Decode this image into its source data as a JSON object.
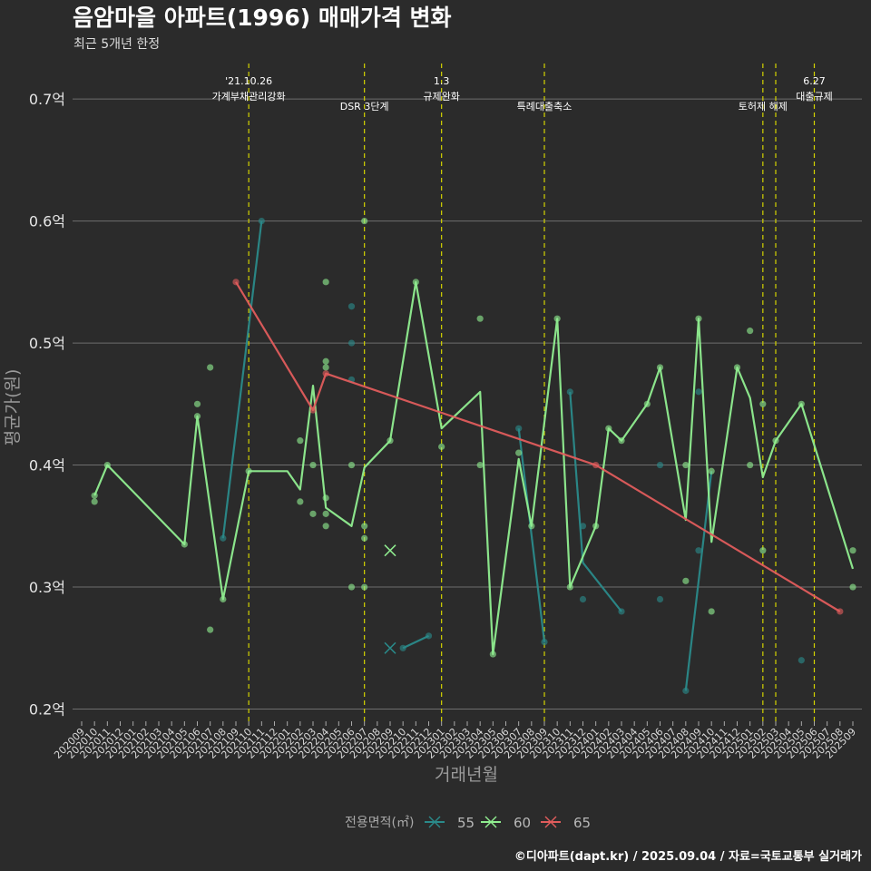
{
  "chart_data": {
    "type": "line",
    "title": "음암마을 아파트(1996) 매매가격 변화",
    "subtitle": "최근 5개년 한정",
    "xlabel": "거래년월",
    "ylabel": "평균가(원)",
    "y_unit": "억",
    "ylim": [
      0.19,
      0.735
    ],
    "yticks": [
      0.2,
      0.3,
      0.4,
      0.5,
      0.6,
      0.7
    ],
    "ytick_labels": [
      "0.2억",
      "0.3억",
      "0.4억",
      "0.5억",
      "0.6억",
      "0.7억"
    ],
    "grid": true,
    "legend": {
      "title": "전용면적(㎡)",
      "position": "bottom"
    },
    "categories": [
      "202009",
      "202010",
      "202011",
      "202012",
      "202101",
      "202102",
      "202103",
      "202104",
      "202105",
      "202106",
      "202107",
      "202108",
      "202109",
      "202110",
      "202111",
      "202112",
      "202201",
      "202202",
      "202203",
      "202204",
      "202205",
      "202206",
      "202207",
      "202208",
      "202209",
      "202210",
      "202211",
      "202212",
      "202301",
      "202302",
      "202303",
      "202304",
      "202305",
      "202306",
      "202307",
      "202308",
      "202309",
      "202310",
      "202311",
      "202312",
      "202401",
      "202402",
      "202403",
      "202404",
      "202405",
      "202406",
      "202407",
      "202408",
      "202409",
      "202410",
      "202411",
      "202412",
      "202501",
      "202502",
      "202503",
      "202504",
      "202505",
      "202506",
      "202507",
      "202508",
      "202509"
    ],
    "events": [
      {
        "x": "202110",
        "lines": [
          "'21.10.26",
          "가계부채관리강화"
        ]
      },
      {
        "x": "202207",
        "lines": [
          "DSR 3단계"
        ]
      },
      {
        "x": "202301",
        "lines": [
          "1.3",
          "규제완화"
        ]
      },
      {
        "x": "202309",
        "lines": [
          "특례대출축소"
        ]
      },
      {
        "x": "202502",
        "lines": [
          "토허제 해제"
        ]
      },
      {
        "x": "202503",
        "lines": []
      },
      {
        "x": "202506",
        "lines": [
          "6.27",
          "대출규제"
        ]
      }
    ],
    "series": [
      {
        "name": "55",
        "color": "#2a8a8a",
        "line": [
          [
            "202108",
            0.34
          ],
          [
            "202111",
            0.6
          ],
          null,
          [
            "202210",
            0.25
          ],
          [
            "202212",
            0.26
          ],
          null,
          [
            "202307",
            0.43
          ],
          [
            "202309",
            0.255
          ],
          null,
          [
            "202311",
            0.46
          ],
          [
            "202312",
            0.32
          ],
          [
            "202403",
            0.28
          ],
          null,
          [
            "202408",
            0.215
          ],
          [
            "202410",
            0.395
          ]
        ],
        "points": [
          [
            "202108",
            0.34
          ],
          [
            "202111",
            0.6
          ],
          [
            "202206",
            0.53
          ],
          [
            "202206",
            0.5
          ],
          [
            "202206",
            0.47
          ],
          [
            "202210",
            0.25
          ],
          [
            "202212",
            0.26
          ],
          [
            "202307",
            0.43
          ],
          [
            "202309",
            0.255
          ],
          [
            "202311",
            0.46
          ],
          [
            "202312",
            0.35
          ],
          [
            "202312",
            0.29
          ],
          [
            "202403",
            0.28
          ],
          [
            "202406",
            0.4
          ],
          [
            "202406",
            0.29
          ],
          [
            "202408",
            0.215
          ],
          [
            "202409",
            0.33
          ],
          [
            "202409",
            0.46
          ],
          [
            "202505",
            0.24
          ]
        ],
        "cross": [
          [
            "202209",
            0.25
          ]
        ]
      },
      {
        "name": "60",
        "color": "#90ee90",
        "line": [
          [
            "202010",
            0.375
          ],
          [
            "202011",
            0.4
          ],
          [
            "202105",
            0.335
          ],
          [
            "202106",
            0.44
          ],
          [
            "202108",
            0.29
          ],
          [
            "202110",
            0.395
          ],
          [
            "202201",
            0.395
          ],
          [
            "202202",
            0.38
          ],
          [
            "202203",
            0.465
          ],
          [
            "202204",
            0.365
          ],
          [
            "202206",
            0.35
          ],
          [
            "202207",
            0.398
          ],
          [
            "202209",
            0.42
          ],
          [
            "202211",
            0.55
          ],
          [
            "202301",
            0.43
          ],
          [
            "202304",
            0.46
          ],
          [
            "202305",
            0.245
          ],
          [
            "202307",
            0.405
          ],
          [
            "202308",
            0.35
          ],
          [
            "202310",
            0.52
          ],
          [
            "202311",
            0.3
          ],
          [
            "202401",
            0.35
          ],
          [
            "202402",
            0.43
          ],
          [
            "202403",
            0.42
          ],
          [
            "202405",
            0.45
          ],
          [
            "202406",
            0.48
          ],
          [
            "202408",
            0.355
          ],
          [
            "202409",
            0.52
          ],
          [
            "202410",
            0.337
          ],
          [
            "202412",
            0.48
          ],
          [
            "202501",
            0.455
          ],
          [
            "202502",
            0.39
          ],
          [
            "202503",
            0.42
          ],
          [
            "202505",
            0.45
          ],
          [
            "202509",
            0.315
          ]
        ],
        "points": [
          [
            "202010",
            0.375
          ],
          [
            "202010",
            0.37
          ],
          [
            "202011",
            0.4
          ],
          [
            "202105",
            0.335
          ],
          [
            "202106",
            0.45
          ],
          [
            "202106",
            0.44
          ],
          [
            "202107",
            0.48
          ],
          [
            "202107",
            0.265
          ],
          [
            "202108",
            0.29
          ],
          [
            "202110",
            0.395
          ],
          [
            "202202",
            0.42
          ],
          [
            "202202",
            0.37
          ],
          [
            "202203",
            0.4
          ],
          [
            "202203",
            0.36
          ],
          [
            "202204",
            0.55
          ],
          [
            "202204",
            0.485
          ],
          [
            "202204",
            0.48
          ],
          [
            "202204",
            0.35
          ],
          [
            "202204",
            0.373
          ],
          [
            "202204",
            0.36
          ],
          [
            "202206",
            0.4
          ],
          [
            "202206",
            0.3
          ],
          [
            "202207",
            0.6
          ],
          [
            "202207",
            0.35
          ],
          [
            "202207",
            0.34
          ],
          [
            "202207",
            0.3
          ],
          [
            "202209",
            0.42
          ],
          [
            "202211",
            0.55
          ],
          [
            "202301",
            0.415
          ],
          [
            "202304",
            0.52
          ],
          [
            "202304",
            0.4
          ],
          [
            "202305",
            0.245
          ],
          [
            "202307",
            0.41
          ],
          [
            "202308",
            0.35
          ],
          [
            "202310",
            0.52
          ],
          [
            "202311",
            0.3
          ],
          [
            "202401",
            0.35
          ],
          [
            "202402",
            0.43
          ],
          [
            "202403",
            0.42
          ],
          [
            "202405",
            0.45
          ],
          [
            "202406",
            0.48
          ],
          [
            "202408",
            0.4
          ],
          [
            "202408",
            0.305
          ],
          [
            "202409",
            0.52
          ],
          [
            "202410",
            0.395
          ],
          [
            "202410",
            0.28
          ],
          [
            "202412",
            0.48
          ],
          [
            "202501",
            0.51
          ],
          [
            "202501",
            0.4
          ],
          [
            "202502",
            0.45
          ],
          [
            "202502",
            0.33
          ],
          [
            "202503",
            0.42
          ],
          [
            "202505",
            0.45
          ],
          [
            "202509",
            0.33
          ],
          [
            "202509",
            0.3
          ]
        ],
        "cross": [
          [
            "202209",
            0.33
          ]
        ]
      },
      {
        "name": "65",
        "color": "#e05c5c",
        "line": [
          [
            "202109",
            0.55
          ],
          [
            "202203",
            0.445
          ],
          [
            "202204",
            0.475
          ],
          [
            "202401",
            0.4
          ],
          [
            "202508",
            0.28
          ]
        ],
        "points": [
          [
            "202109",
            0.55
          ],
          [
            "202203",
            0.445
          ],
          [
            "202204",
            0.475
          ],
          [
            "202401",
            0.4
          ],
          [
            "202508",
            0.28
          ]
        ],
        "cross": []
      }
    ]
  },
  "caption": "©디아파트(dapt.kr) / 2025.09.04 / 자료=국토교통부 실거래가"
}
